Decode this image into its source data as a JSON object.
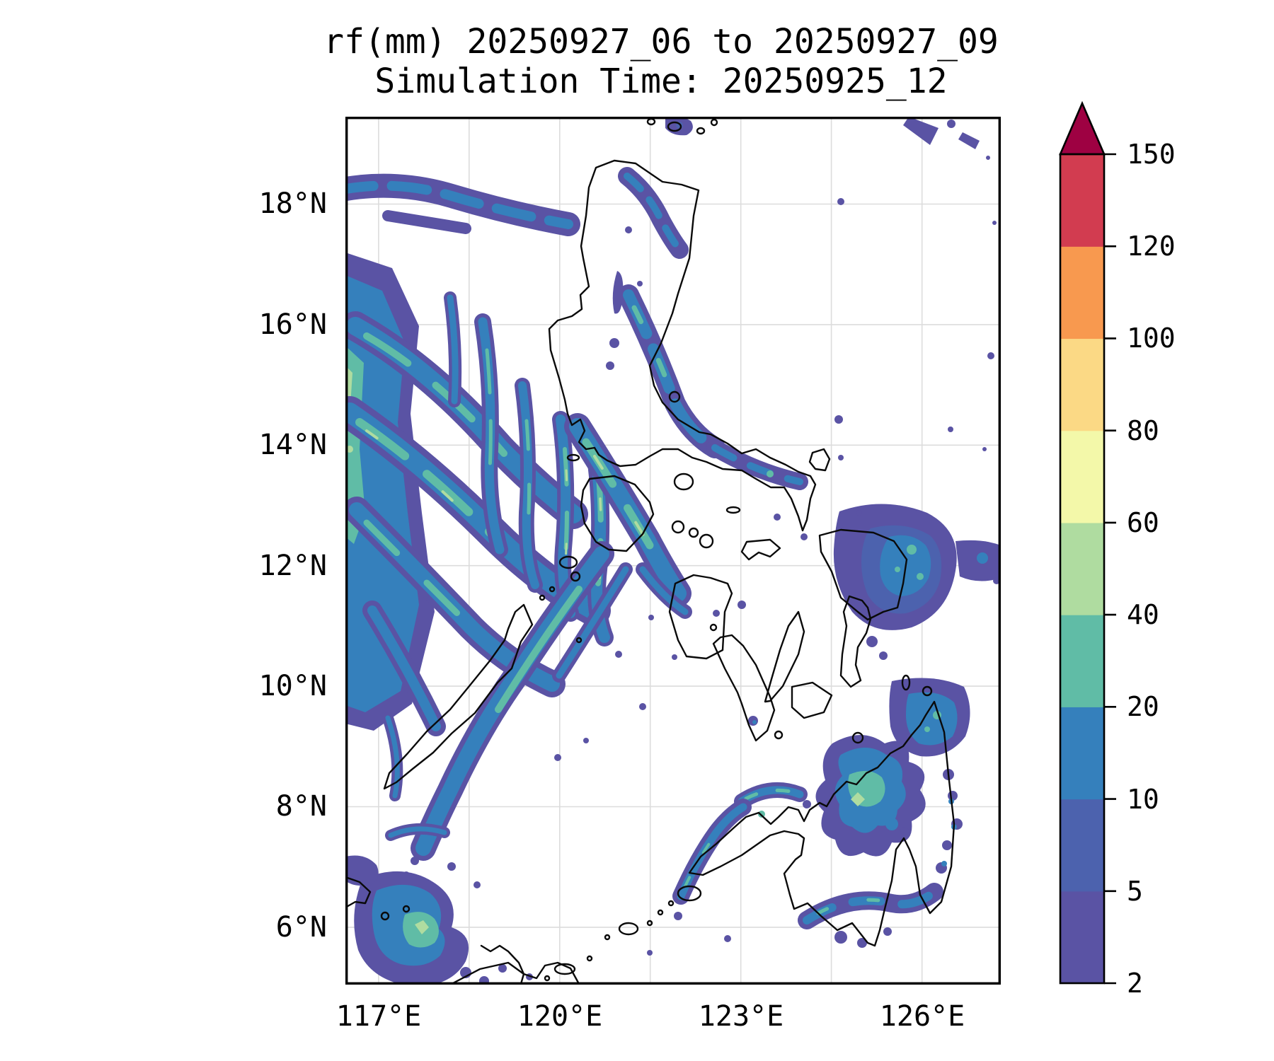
{
  "figure": {
    "title_line1": "rf(mm) 20250927_06 to 20250927_09",
    "title_line2": "Simulation Time: 20250925_12"
  },
  "chart_data": {
    "type": "heatmap",
    "subtype": "filled_contour_rainfall_map",
    "title": "rf(mm) 20250927_06 to 20250927_09",
    "subtitle": "Simulation Time: 20250925_12",
    "variable": "rf",
    "units": "mm",
    "valid_from": "20250927_06",
    "valid_to": "20250927_09",
    "simulation_time": "20250925_12",
    "region": "Philippines",
    "x_axis": {
      "ticks": [
        "117°E",
        "120°E",
        "123°E",
        "126°E"
      ],
      "range_deg_east": [
        116.45,
        127.3
      ],
      "gridline_spacing_deg": 1.5
    },
    "y_axis": {
      "ticks": [
        "6°N",
        "8°N",
        "10°N",
        "12°N",
        "14°N",
        "16°N",
        "18°N"
      ],
      "range_deg_north": [
        5.05,
        19.45
      ],
      "gridline_spacing_deg": 2
    },
    "grid": true,
    "colorbar": {
      "orientation": "vertical",
      "position": "right",
      "extend": "max",
      "colormap": "Spectral_r",
      "levels_mm": [
        2,
        5,
        10,
        20,
        40,
        60,
        80,
        100,
        120,
        150
      ],
      "tick_labels": [
        "2",
        "5",
        "10",
        "20",
        "40",
        "60",
        "80",
        "100",
        "120",
        "150"
      ],
      "colors": [
        "#5a53a4",
        "#4c62ae",
        "#3580bc",
        "#60bca6",
        "#afdca0",
        "#f3f8a9",
        "#fbd985",
        "#f8994f",
        "#d23c50",
        "#9e0142"
      ]
    },
    "max_shaded_level_mm": 60,
    "rain_areas": [
      {
        "name": "South China Sea west of Luzon spiral bands",
        "approx_lon_e": 117.0,
        "approx_lat_n": 14.0,
        "peak_range_mm": "40-60"
      },
      {
        "name": "Band near 18N west of Ilocos",
        "approx_lon_e": 117.5,
        "approx_lat_n": 17.9,
        "peak_range_mm": "10-20"
      },
      {
        "name": "Northeast Luzon (Cagayan)",
        "approx_lon_e": 121.6,
        "approx_lat_n": 17.6,
        "peak_range_mm": "10-20"
      },
      {
        "name": "Aurora / east-central Luzon coast",
        "approx_lon_e": 122.0,
        "approx_lat_n": 15.5,
        "peak_range_mm": "20-40"
      },
      {
        "name": "Central Luzon rainband streaks",
        "approx_lon_e": 120.9,
        "approx_lat_n": 14.3,
        "peak_range_mm": "40-60"
      },
      {
        "name": "Mindoro-Batangas band",
        "approx_lon_e": 121.3,
        "approx_lat_n": 13.2,
        "peak_range_mm": "40-60"
      },
      {
        "name": "Sulu Sea band toward Palawan",
        "approx_lon_e": 119.8,
        "approx_lat_n": 11.0,
        "peak_range_mm": "20-40"
      },
      {
        "name": "Samar / Eastern Visayas",
        "approx_lon_e": 125.5,
        "approx_lat_n": 11.8,
        "peak_range_mm": "20-40"
      },
      {
        "name": "Northeast Mindanao (Surigao-Agusan)",
        "approx_lon_e": 125.9,
        "approx_lat_n": 9.3,
        "peak_range_mm": "20-40"
      },
      {
        "name": "Central Mindanao (Bukidnon)",
        "approx_lon_e": 125.0,
        "approx_lat_n": 8.0,
        "peak_range_mm": "40-60"
      },
      {
        "name": "North Zamboanga coast",
        "approx_lon_e": 122.8,
        "approx_lat_n": 7.9,
        "peak_range_mm": "20-40"
      },
      {
        "name": "West Zamboanga coastal band",
        "approx_lon_e": 122.3,
        "approx_lat_n": 7.2,
        "peak_range_mm": "20-40"
      },
      {
        "name": "Southern Mindanao (Davao)",
        "approx_lon_e": 125.2,
        "approx_lat_n": 6.2,
        "peak_range_mm": "20-40"
      },
      {
        "name": "Sabah / Sulu southwest corner",
        "approx_lon_e": 117.5,
        "approx_lat_n": 6.0,
        "peak_range_mm": "40-60"
      },
      {
        "name": "Babuyan Channel and far northeast corner",
        "approx_lon_e": 126.1,
        "approx_lat_n": 19.2,
        "peak_range_mm": "5-10"
      }
    ]
  },
  "colors": {
    "background": "#ffffff",
    "coastline": "#000000",
    "gridline": "#dcdcdc",
    "axis_text": "#000000"
  }
}
